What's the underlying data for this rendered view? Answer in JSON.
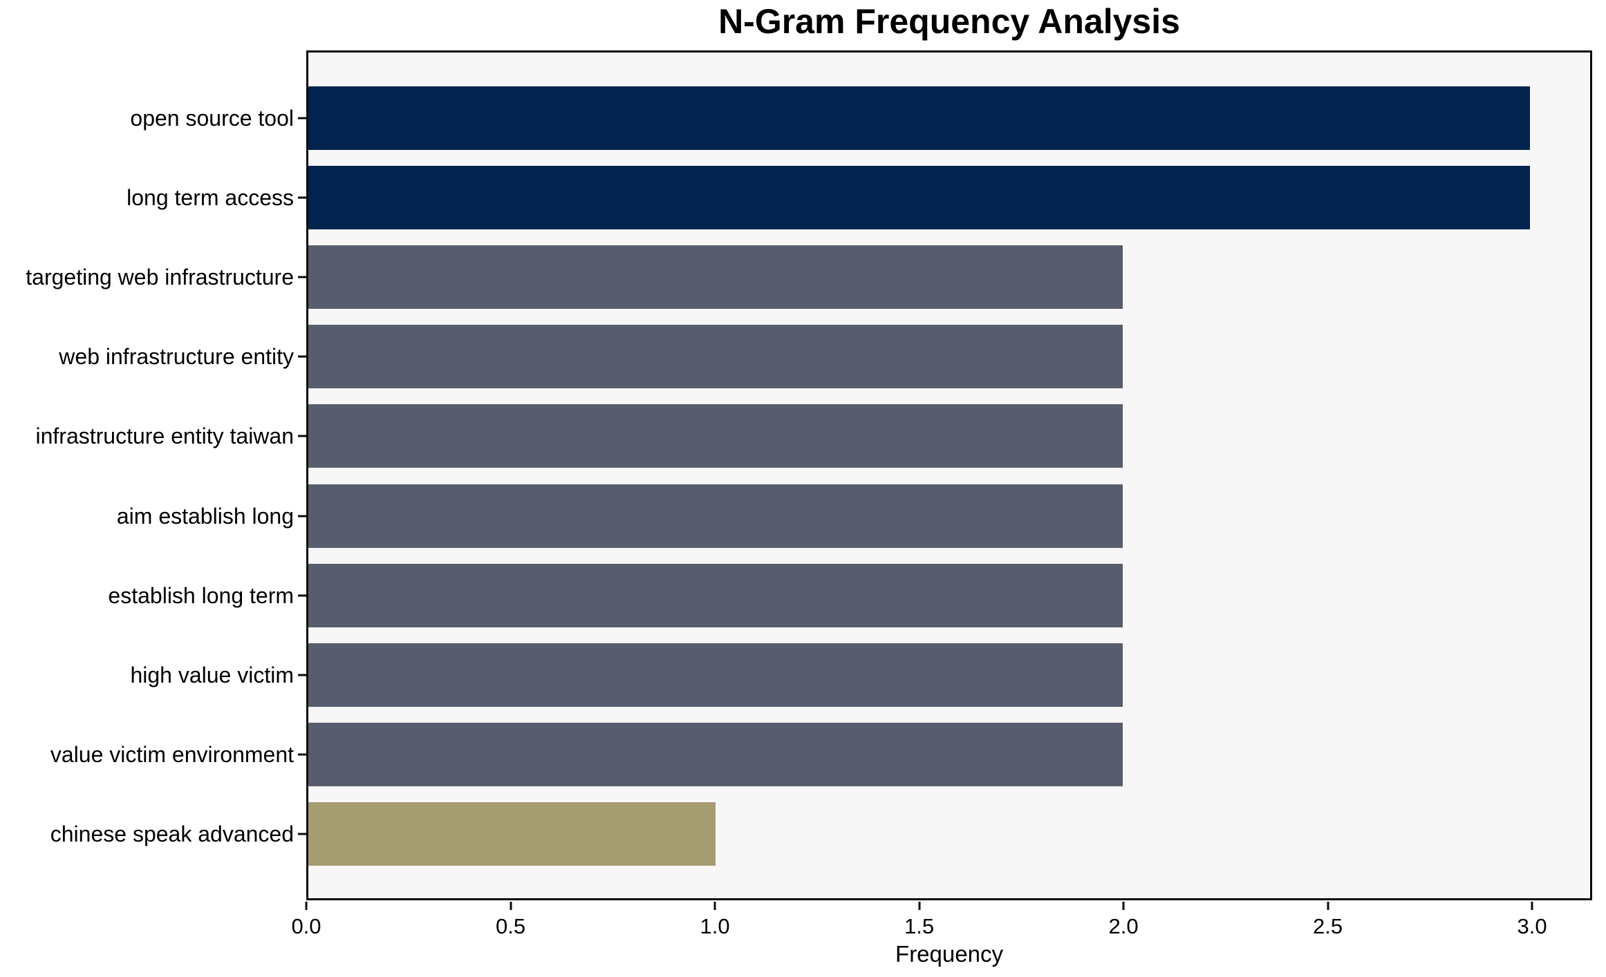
{
  "chart_data": {
    "type": "bar",
    "orientation": "horizontal",
    "title": "N-Gram Frequency Analysis",
    "xlabel": "Frequency",
    "ylabel": "",
    "categories": [
      "open source tool",
      "long term access",
      "targeting web infrastructure",
      "web infrastructure entity",
      "infrastructure entity taiwan",
      "aim establish long",
      "establish long term",
      "high value victim",
      "value victim environment",
      "chinese speak advanced"
    ],
    "values": [
      3,
      3,
      2,
      2,
      2,
      2,
      2,
      2,
      2,
      1
    ],
    "bar_colors": [
      "#02234D",
      "#02234D",
      "#575D6C",
      "#575D6C",
      "#575D6C",
      "#575D6C",
      "#575D6C",
      "#575D6C",
      "#575D6C",
      "#A69C72"
    ],
    "xlim": [
      0,
      3.147
    ],
    "xticks": [
      0.0,
      0.5,
      1.0,
      1.5,
      2.0,
      2.5,
      3.0
    ],
    "xtick_labels": [
      "0.0",
      "0.5",
      "1.0",
      "1.5",
      "2.0",
      "2.5",
      "3.0"
    ],
    "grid": false,
    "legend": false,
    "colors": {
      "plot_background": "#F7F7F7",
      "figure_background": "#FFFFFF",
      "spine": "#0A0A0A",
      "text": "#000000"
    }
  }
}
